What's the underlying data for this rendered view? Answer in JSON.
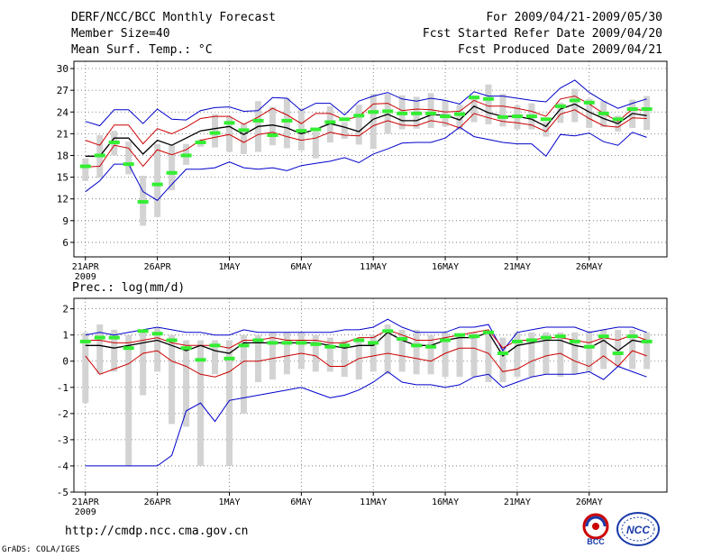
{
  "header": {
    "left": [
      "DERF/NCC/BCC Monthly Forecast",
      "Member Size=40",
      "Mean Surf. Temp.: °C"
    ],
    "right": [
      "For 2009/04/21-2009/05/30",
      "Fcst Started Refer Date 2009/04/20",
      "Fcst Produced Date 2009/04/21"
    ]
  },
  "footer": {
    "url": "http://cmdp.ncc.cma.gov.cn",
    "credit": "GrADS: COLA/IGES"
  },
  "logos": {
    "left_text": "BCC",
    "right_text": "NCC"
  },
  "colors": {
    "envelope": "#0000cc",
    "spread": "#cc0000",
    "mean": "#000000",
    "observed": "#33ee33",
    "box": "#d3d3d3"
  },
  "chart_data": [
    {
      "type": "line",
      "title": "Mean Surf. Temp.: °C",
      "x": [
        1,
        2,
        3,
        4,
        5,
        6,
        7,
        8,
        9,
        10,
        11,
        12,
        13,
        14,
        15,
        16,
        17,
        18,
        19,
        20,
        21,
        22,
        23,
        24,
        25,
        26,
        27,
        28,
        29,
        30,
        31,
        32,
        33,
        34,
        35,
        36,
        37,
        38,
        39,
        40
      ],
      "x_range": [
        0.2,
        41.4
      ],
      "ylim": [
        4,
        31
      ],
      "yticks": [
        6,
        9,
        12,
        15,
        18,
        21,
        24,
        27,
        30
      ],
      "xtick_positions": [
        1,
        6,
        11,
        16,
        21,
        26,
        31,
        36
      ],
      "xtick_labels": [
        "21APR",
        "26APR",
        "1MAY",
        "6MAY",
        "11MAY",
        "16MAY",
        "21MAY",
        "26MAY"
      ],
      "year_label": "2009",
      "series": [
        {
          "name": "max",
          "values": [
            22.7,
            22.1,
            24.3,
            24.3,
            22.4,
            24.4,
            23.0,
            22.9,
            24.2,
            24.6,
            24.7,
            24.1,
            24.2,
            26.0,
            25.9,
            24.2,
            25.2,
            25.2,
            23.6,
            25.5,
            26.2,
            26.7,
            25.8,
            25.5,
            25.9,
            25.6,
            25.1,
            26.8,
            26.2,
            26.2,
            25.9,
            25.6,
            25.4,
            27.3,
            28.4,
            26.7,
            25.5,
            24.5,
            25.2,
            25.8
          ]
        },
        {
          "name": "upper",
          "values": [
            20.1,
            19.4,
            22.2,
            22.2,
            19.6,
            21.7,
            21.0,
            21.9,
            23.1,
            23.4,
            23.4,
            22.3,
            23.3,
            24.5,
            23.6,
            22.4,
            23.8,
            23.8,
            22.9,
            23.4,
            25.1,
            25.2,
            24.2,
            24.4,
            24.3,
            24.0,
            24.1,
            25.6,
            24.8,
            24.8,
            24.5,
            24.1,
            23.4,
            25.8,
            26.2,
            25.1,
            23.8,
            22.7,
            24.4,
            24.2
          ]
        },
        {
          "name": "mean",
          "values": [
            17.9,
            17.9,
            20.4,
            20.4,
            18.2,
            20.1,
            19.4,
            20.4,
            21.4,
            21.7,
            22.0,
            20.9,
            22.0,
            22.2,
            21.8,
            21.0,
            21.6,
            22.4,
            21.9,
            21.3,
            23.0,
            23.7,
            22.8,
            22.8,
            23.6,
            23.6,
            22.9,
            24.8,
            23.9,
            23.4,
            23.4,
            23.0,
            22.0,
            24.4,
            25.1,
            24.0,
            23.1,
            22.4,
            23.8,
            23.5
          ]
        },
        {
          "name": "lower",
          "values": [
            16.4,
            16.5,
            19.4,
            19.0,
            16.5,
            18.8,
            18.1,
            18.8,
            20.1,
            20.5,
            20.9,
            19.8,
            20.9,
            21.2,
            20.6,
            20.1,
            20.4,
            21.2,
            20.8,
            20.7,
            22.1,
            22.8,
            22.2,
            22.1,
            22.8,
            22.5,
            21.8,
            23.8,
            23.2,
            22.7,
            22.5,
            22.2,
            21.3,
            23.7,
            24.3,
            23.1,
            22.1,
            21.9,
            23.2,
            23.1
          ]
        },
        {
          "name": "min",
          "values": [
            13.0,
            14.5,
            16.8,
            16.8,
            13.0,
            11.8,
            14.0,
            16.1,
            16.1,
            16.3,
            17.1,
            16.3,
            16.1,
            16.3,
            15.9,
            16.6,
            16.9,
            17.2,
            17.7,
            17.0,
            18.2,
            18.9,
            19.7,
            19.8,
            19.8,
            20.4,
            21.9,
            20.6,
            20.2,
            19.8,
            19.6,
            19.6,
            17.9,
            20.9,
            20.7,
            21.1,
            19.9,
            19.4,
            21.2,
            20.5
          ]
        }
      ],
      "boxes": {
        "low": [
          14.5,
          14.9,
          18.0,
          15.4,
          8.3,
          9.5,
          13.2,
          16.7,
          19.2,
          19.1,
          18.5,
          18.2,
          18.5,
          19.4,
          19.0,
          18.7,
          17.6,
          19.8,
          20.3,
          19.5,
          18.9,
          21.0,
          21.6,
          21.7,
          21.8,
          22.0,
          21.5,
          22.6,
          22.3,
          22.0,
          21.6,
          21.6,
          20.6,
          22.5,
          22.6,
          21.8,
          21.9,
          21.3,
          21.8,
          21.5
        ],
        "high": [
          17.6,
          20.8,
          21.4,
          19.9,
          15.2,
          19.6,
          19.4,
          19.6,
          20.2,
          23.7,
          23.3,
          22.4,
          25.5,
          24.7,
          25.9,
          24.5,
          21.3,
          24.8,
          22.6,
          25.0,
          26.5,
          26.5,
          26.3,
          26.1,
          26.6,
          25.6,
          25.0,
          26.3,
          27.8,
          26.5,
          24.9,
          25.2,
          22.6,
          25.3,
          27.2,
          25.8,
          25.5,
          23.5,
          25.7,
          26.2
        ]
      },
      "observed": [
        16.5,
        18.0,
        19.8,
        16.8,
        11.6,
        14.0,
        15.6,
        18.0,
        19.8,
        21.1,
        22.5,
        21.5,
        22.8,
        20.8,
        22.8,
        21.4,
        21.6,
        22.6,
        23.0,
        23.5,
        24.0,
        24.1,
        23.8,
        23.8,
        23.8,
        23.4,
        23.7,
        26.0,
        25.8,
        23.3,
        23.4,
        23.4,
        23.0,
        24.8,
        25.6,
        25.3,
        23.8,
        23.0,
        24.4,
        24.4
      ]
    },
    {
      "type": "line",
      "title": "Prec.: log(mm/d)",
      "x": [
        1,
        2,
        3,
        4,
        5,
        6,
        7,
        8,
        9,
        10,
        11,
        12,
        13,
        14,
        15,
        16,
        17,
        18,
        19,
        20,
        21,
        22,
        23,
        24,
        25,
        26,
        27,
        28,
        29,
        30,
        31,
        32,
        33,
        34,
        35,
        36,
        37,
        38,
        39,
        40
      ],
      "x_range": [
        0.2,
        41.4
      ],
      "ylim": [
        -5,
        2.4
      ],
      "yticks": [
        -5,
        -4,
        -3,
        -2,
        -1,
        0,
        1,
        2
      ],
      "xtick_positions": [
        1,
        6,
        11,
        16,
        21,
        26,
        31,
        36
      ],
      "xtick_labels": [
        "21APR",
        "26APR",
        "1MAY",
        "6MAY",
        "11MAY",
        "16MAY",
        "21MAY",
        "26MAY"
      ],
      "year_label": "2009",
      "series": [
        {
          "name": "max",
          "values": [
            1.0,
            1.1,
            1.0,
            1.1,
            1.2,
            1.3,
            1.2,
            1.1,
            1.1,
            1.0,
            1.0,
            1.2,
            1.1,
            1.1,
            1.1,
            1.1,
            1.1,
            1.1,
            1.2,
            1.2,
            1.3,
            1.6,
            1.3,
            1.1,
            1.1,
            1.1,
            1.3,
            1.3,
            1.4,
            0.4,
            1.1,
            1.2,
            1.3,
            1.3,
            1.3,
            1.1,
            1.2,
            1.3,
            1.3,
            1.1
          ]
        },
        {
          "name": "upper",
          "values": [
            0.8,
            0.8,
            0.7,
            0.7,
            0.8,
            0.9,
            0.7,
            0.6,
            0.6,
            0.6,
            0.5,
            0.8,
            0.8,
            0.9,
            0.8,
            0.8,
            0.8,
            0.7,
            0.7,
            0.9,
            0.9,
            1.2,
            1.0,
            0.8,
            0.8,
            0.9,
            1.0,
            1.1,
            1.2,
            0.5,
            0.8,
            0.8,
            0.9,
            0.9,
            0.8,
            0.7,
            0.9,
            0.8,
            1.0,
            0.8
          ]
        },
        {
          "name": "mean",
          "values": [
            0.6,
            0.6,
            0.5,
            0.6,
            0.7,
            0.8,
            0.6,
            0.4,
            0.6,
            0.4,
            0.3,
            0.7,
            0.7,
            0.7,
            0.7,
            0.7,
            0.7,
            0.6,
            0.5,
            0.6,
            0.6,
            1.1,
            0.8,
            0.6,
            0.6,
            0.8,
            0.9,
            0.9,
            1.1,
            0.2,
            0.6,
            0.7,
            0.8,
            0.8,
            0.6,
            0.5,
            0.8,
            0.4,
            0.8,
            0.7
          ]
        },
        {
          "name": "lower",
          "values": [
            0.2,
            -0.5,
            -0.3,
            -0.1,
            0.3,
            0.4,
            0.0,
            -0.2,
            -0.5,
            -0.6,
            -0.4,
            0.0,
            0.0,
            0.1,
            0.2,
            0.3,
            0.2,
            -0.2,
            -0.2,
            0.1,
            0.2,
            0.3,
            0.2,
            0.1,
            0.0,
            0.3,
            0.5,
            0.5,
            0.3,
            -0.4,
            -0.3,
            0.0,
            0.2,
            0.3,
            0.0,
            -0.2,
            0.2,
            -0.2,
            0.4,
            0.2
          ]
        },
        {
          "name": "min",
          "values": [
            -4.0,
            -4.0,
            -4.0,
            -4.0,
            -4.0,
            -4.0,
            -3.6,
            -1.9,
            -1.6,
            -2.3,
            -1.5,
            -1.4,
            -1.3,
            -1.2,
            -1.1,
            -1.0,
            -1.2,
            -1.4,
            -1.3,
            -1.1,
            -0.8,
            -0.4,
            -0.8,
            -0.9,
            -0.9,
            -1.0,
            -0.9,
            -0.6,
            -0.5,
            -1.0,
            -0.8,
            -0.6,
            -0.5,
            -0.5,
            -0.5,
            -0.4,
            -0.7,
            -0.2,
            -0.4,
            -0.6
          ]
        }
      ],
      "boxes": {
        "low": [
          -1.6,
          -0.5,
          -0.4,
          -4.0,
          -1.3,
          -0.4,
          -2.4,
          -2.5,
          -4.0,
          -0.5,
          -4.0,
          -2.0,
          -0.8,
          -0.7,
          -0.5,
          -0.3,
          -0.4,
          -0.4,
          -0.6,
          -0.7,
          -0.4,
          -0.5,
          -0.4,
          -0.5,
          -0.5,
          -0.6,
          -0.6,
          -0.6,
          -0.8,
          -0.8,
          -0.6,
          -0.6,
          -0.5,
          -0.6,
          -0.5,
          -0.4,
          -0.3,
          -0.2,
          -0.3,
          -0.3
        ],
        "high": [
          1.1,
          1.4,
          1.2,
          1.0,
          1.1,
          1.3,
          1.0,
          0.8,
          0.8,
          0.8,
          0.8,
          1.0,
          1.0,
          1.1,
          1.1,
          1.1,
          1.0,
          0.9,
          0.8,
          0.8,
          1.0,
          1.4,
          1.2,
          1.2,
          1.0,
          1.1,
          1.0,
          1.1,
          1.1,
          0.9,
          1.1,
          1.1,
          1.1,
          1.1,
          1.1,
          1.1,
          1.2,
          1.2,
          1.2,
          1.1
        ]
      },
      "observed": [
        0.75,
        0.9,
        0.9,
        0.5,
        1.15,
        1.05,
        0.8,
        0.5,
        0.05,
        0.6,
        0.1,
        0.6,
        0.8,
        0.7,
        0.7,
        0.7,
        0.65,
        0.55,
        0.6,
        0.8,
        0.7,
        1.15,
        0.85,
        0.6,
        0.55,
        0.8,
        1.0,
        0.95,
        1.1,
        0.3,
        0.75,
        0.8,
        0.9,
        0.95,
        0.75,
        0.55,
        0.95,
        0.3,
        0.95,
        0.75
      ]
    }
  ]
}
